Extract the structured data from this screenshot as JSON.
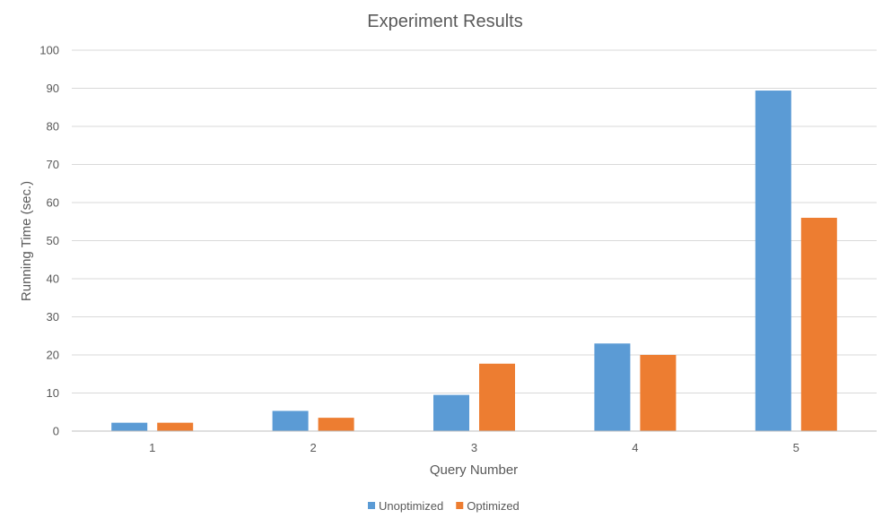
{
  "chart_data": {
    "type": "bar",
    "title": "Experiment Results",
    "xlabel": "Query Number",
    "ylabel": "Running Time (sec.)",
    "categories": [
      "1",
      "2",
      "3",
      "4",
      "5"
    ],
    "series": [
      {
        "name": "Unoptimized",
        "color": "#5b9bd5",
        "values": [
          2.2,
          5.3,
          9.5,
          23.0,
          89.4
        ]
      },
      {
        "name": "Optimized",
        "color": "#ed7d31",
        "values": [
          2.2,
          3.5,
          17.7,
          20.0,
          56.0
        ]
      }
    ],
    "ylim": [
      0,
      100
    ],
    "yticks": [
      "0",
      "10",
      "20",
      "30",
      "40",
      "50",
      "60",
      "70",
      "80",
      "90",
      "100"
    ],
    "grid": true,
    "legend_position": "bottom"
  }
}
